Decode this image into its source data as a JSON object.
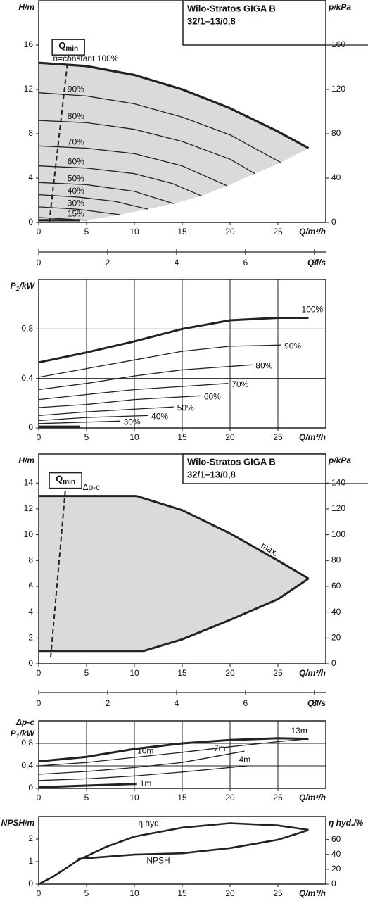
{
  "chart_data": [
    {
      "type": "line",
      "title": "Wilo-Stratos GIGA B",
      "subtitle": "32/1–13/0,8",
      "ylabel": "H/m",
      "y2label": "p/kPa",
      "xlabel": "Q/m³/h",
      "x2label": "Q/l/s",
      "xlim": [
        0,
        30
      ],
      "xticks": [
        0,
        5,
        10,
        15,
        20,
        25
      ],
      "x2lim": [
        0,
        8.33
      ],
      "x2ticks": [
        0,
        2,
        4,
        6,
        8
      ],
      "ylim": [
        0,
        20
      ],
      "yticks": [
        0,
        4,
        8,
        12,
        16
      ],
      "y2lim": [
        0,
        200
      ],
      "y2ticks": [
        0,
        40,
        80,
        120,
        160
      ],
      "grid": false,
      "shade": "envelope",
      "shade_color": "#dadada",
      "qmin": {
        "label": "Q",
        "label_sub": "min",
        "x": [
          1.1,
          3.1
        ],
        "y": [
          0,
          15.1
        ]
      },
      "series": [
        {
          "name": "n=constant 100%",
          "color": "#222222",
          "line_width": 3.2,
          "x": [
            0,
            5,
            10,
            15,
            20,
            25,
            28.2
          ],
          "values": [
            14.4,
            14.1,
            13.3,
            12.0,
            10.3,
            8.2,
            6.7
          ]
        },
        {
          "name": "90%",
          "color": "#222222",
          "line_width": 1.3,
          "x": [
            0,
            5,
            10,
            15,
            20,
            25.3
          ],
          "values": [
            11.7,
            11.4,
            10.7,
            9.5,
            7.9,
            5.4
          ]
        },
        {
          "name": "80%",
          "color": "#222222",
          "line_width": 1.3,
          "x": [
            0,
            5,
            10,
            15,
            20,
            22.6
          ],
          "values": [
            9.2,
            9.0,
            8.4,
            7.3,
            5.7,
            4.4
          ]
        },
        {
          "name": "70%",
          "color": "#222222",
          "line_width": 1.3,
          "x": [
            0,
            5,
            10,
            15,
            19.7
          ],
          "values": [
            6.9,
            6.7,
            6.2,
            5.1,
            3.3
          ]
        },
        {
          "name": "60%",
          "color": "#222222",
          "line_width": 1.3,
          "x": [
            0,
            5,
            10,
            14,
            17
          ],
          "values": [
            5.1,
            4.9,
            4.4,
            3.5,
            2.4
          ]
        },
        {
          "name": "50%",
          "color": "#222222",
          "line_width": 1.3,
          "x": [
            0,
            5,
            10,
            14.1
          ],
          "values": [
            3.6,
            3.4,
            2.8,
            1.7
          ]
        },
        {
          "name": "40%",
          "color": "#222222",
          "line_width": 1.3,
          "x": [
            0,
            4,
            8,
            11.4
          ],
          "values": [
            2.5,
            2.3,
            1.9,
            1.2
          ]
        },
        {
          "name": "30%",
          "color": "#222222",
          "line_width": 1.3,
          "x": [
            0,
            4,
            8.5
          ],
          "values": [
            1.4,
            1.2,
            0.7
          ]
        },
        {
          "name": "15%",
          "color": "#222222",
          "line_width": 1.3,
          "x": [
            0,
            5
          ],
          "values": [
            0.45,
            0.2
          ]
        },
        {
          "color": "#222222",
          "line_width": 3.2,
          "x": [
            0,
            4.3
          ],
          "values": [
            0.2,
            0.2
          ]
        }
      ]
    },
    {
      "type": "line",
      "ylabel": {
        "main": "P",
        "sub": "1",
        "rest": "/kW"
      },
      "xlabel": "Q/m³/h",
      "xlim": [
        0,
        30
      ],
      "xticks": [
        0,
        5,
        10,
        15,
        20,
        25
      ],
      "ylim": [
        0,
        1.2
      ],
      "yticks": [
        0,
        {
          "value": 0.4,
          "label": "0,4"
        },
        {
          "value": 0.8,
          "label": "0,8"
        }
      ],
      "grid": true,
      "series": [
        {
          "name": "100%",
          "color": "#222222",
          "line_width": 3,
          "x": [
            0,
            5,
            10,
            15,
            20,
            25,
            28.2
          ],
          "values": [
            0.53,
            0.61,
            0.7,
            0.8,
            0.87,
            0.89,
            0.89
          ]
        },
        {
          "name": "90%",
          "color": "#222222",
          "line_width": 1.3,
          "x": [
            0,
            5,
            10,
            15,
            20,
            25.3
          ],
          "values": [
            0.41,
            0.48,
            0.55,
            0.62,
            0.66,
            0.67
          ]
        },
        {
          "name": "80%",
          "color": "#222222",
          "line_width": 1.3,
          "x": [
            0,
            5,
            10,
            15,
            22.3
          ],
          "values": [
            0.31,
            0.36,
            0.42,
            0.47,
            0.51
          ]
        },
        {
          "name": "70%",
          "color": "#222222",
          "line_width": 1.3,
          "x": [
            0,
            5,
            10,
            19.8
          ],
          "values": [
            0.23,
            0.27,
            0.31,
            0.36
          ]
        },
        {
          "name": "60%",
          "color": "#222222",
          "line_width": 1.3,
          "x": [
            0,
            5,
            10,
            16.9
          ],
          "values": [
            0.165,
            0.19,
            0.23,
            0.26
          ]
        },
        {
          "name": "50%",
          "color": "#222222",
          "line_width": 1.3,
          "x": [
            0,
            5,
            14.1
          ],
          "values": [
            0.1,
            0.13,
            0.17
          ]
        },
        {
          "name": "40%",
          "color": "#222222",
          "line_width": 1.3,
          "x": [
            0,
            5,
            11.4
          ],
          "values": [
            0.06,
            0.085,
            0.1
          ]
        },
        {
          "name": "30%",
          "color": "#222222",
          "line_width": 1.3,
          "x": [
            0,
            8.5
          ],
          "values": [
            0.035,
            0.055
          ]
        },
        {
          "color": "#222222",
          "line_width": 3.2,
          "x": [
            0,
            4.3
          ],
          "values": [
            0.01,
            0.01
          ]
        }
      ]
    },
    {
      "type": "line",
      "title": "Wilo-Stratos GIGA B",
      "subtitle": "32/1–13/0,8",
      "ylabel": "H/m",
      "y2label": "p/kPa",
      "xlabel": "Q/m³/h",
      "x2label": "Q/l/s",
      "xlim": [
        0,
        30
      ],
      "xticks": [
        0,
        5,
        10,
        15,
        20,
        25
      ],
      "x2lim": [
        0,
        8.33
      ],
      "x2ticks": [
        0,
        2,
        4,
        6,
        8
      ],
      "ylim": [
        0,
        16.25
      ],
      "yticks": [
        0,
        2,
        4,
        6,
        8,
        10,
        12,
        14
      ],
      "y2lim": [
        0,
        162.5
      ],
      "y2ticks": [
        0,
        20,
        40,
        60,
        80,
        100,
        120,
        140
      ],
      "grid": false,
      "shade": "closed",
      "shade_color": "#dadada",
      "qmin": {
        "label": "Q",
        "label_sub": "min",
        "x": [
          1.25,
          2.8
        ],
        "y": [
          0.5,
          13.6
        ]
      },
      "series": [
        {
          "name": "Δp-c",
          "color": "#222222",
          "line_width": 3,
          "x": [
            0,
            10.2
          ],
          "values": [
            13,
            13
          ]
        },
        {
          "name": "max.",
          "color": "#222222",
          "line_width": 3,
          "x": [
            10.2,
            15,
            20,
            25,
            28.2
          ],
          "values": [
            13,
            11.9,
            10.1,
            8.0,
            6.6
          ]
        },
        {
          "color": "#222222",
          "line_width": 3,
          "x": [
            28.2,
            25,
            20,
            15,
            11,
            0
          ],
          "values": [
            6.6,
            5.0,
            3.4,
            1.9,
            1.0,
            1.0
          ]
        }
      ]
    },
    {
      "type": "line",
      "ylabel_note": "Δp-c",
      "ylabel": {
        "main": "P",
        "sub": "1",
        "rest": "/kW"
      },
      "xlabel": "Q/m³/h",
      "xlim": [
        0,
        30
      ],
      "xticks": [
        0,
        5,
        10,
        15,
        20,
        25
      ],
      "ylim": [
        0,
        1.2
      ],
      "yticks": [
        0,
        {
          "value": 0.4,
          "label": "0,4"
        },
        {
          "value": 0.8,
          "label": "0,8"
        }
      ],
      "grid": true,
      "series": [
        {
          "name": "13m",
          "color": "#222222",
          "line_width": 3,
          "x": [
            0,
            5,
            10,
            15,
            20,
            25,
            28.2
          ],
          "values": [
            0.48,
            0.56,
            0.7,
            0.8,
            0.86,
            0.89,
            0.88
          ]
        },
        {
          "name": "10m",
          "color": "#222222",
          "line_width": 1.3,
          "x": [
            0,
            5,
            10,
            15,
            20,
            25,
            28.2
          ],
          "values": [
            0.4,
            0.46,
            0.55,
            0.64,
            0.74,
            0.83,
            0.88
          ]
        },
        {
          "name": "7m",
          "color": "#222222",
          "line_width": 1.3,
          "x": [
            0,
            5,
            10,
            15,
            21.5
          ],
          "values": [
            0.25,
            0.3,
            0.37,
            0.46,
            0.66
          ]
        },
        {
          "name": "4m",
          "color": "#222222",
          "line_width": 1.3,
          "x": [
            0,
            5,
            10,
            15,
            21.8
          ],
          "values": [
            0.14,
            0.17,
            0.22,
            0.29,
            0.4
          ]
        },
        {
          "name": "1m",
          "color": "#222222",
          "line_width": 3,
          "x": [
            0,
            5,
            10.2
          ],
          "values": [
            0.02,
            0.05,
            0.08
          ]
        }
      ]
    },
    {
      "type": "line",
      "ylabel": "NPSH/m",
      "y2label": "η hyd./%",
      "xlabel": "Q/m³/h",
      "xlim": [
        0,
        30
      ],
      "xticks": [
        0,
        5,
        10,
        15,
        20,
        25
      ],
      "ylim": [
        0,
        3
      ],
      "yticks": [
        0,
        1,
        2
      ],
      "y2lim": [
        0,
        91
      ],
      "y2ticks": [
        0,
        20,
        40,
        60
      ],
      "grid": false,
      "series": [
        {
          "name": "NPSH",
          "color": "#222222",
          "line_width": 2.6,
          "x": [
            4.1,
            10,
            15,
            20,
            25,
            28.2
          ],
          "values": [
            1.12,
            1.31,
            1.37,
            1.6,
            1.97,
            2.4
          ]
        },
        {
          "name": "η hyd.",
          "axis": "y2",
          "color": "#222222",
          "line_width": 2.6,
          "x": [
            0,
            1.5,
            4.1,
            7,
            10,
            15,
            20,
            25,
            28.2
          ],
          "values": [
            0,
            10,
            32,
            50,
            64,
            76,
            82,
            79,
            73
          ]
        }
      ]
    }
  ]
}
